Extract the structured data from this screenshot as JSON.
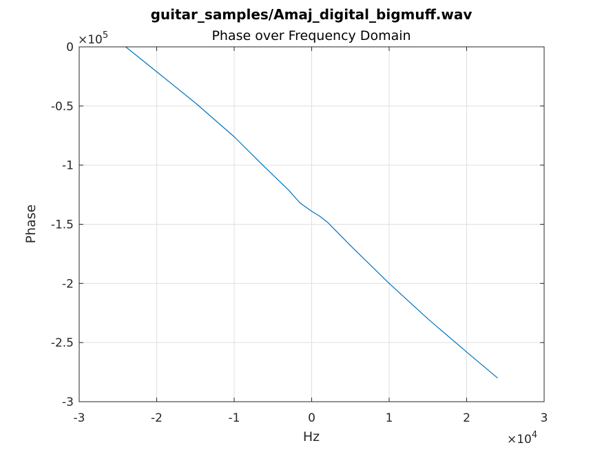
{
  "chart_data": {
    "type": "line",
    "title": "guitar_samples/Amaj_digital_bigmuff.wav",
    "subtitle": "Phase over Frequency Domain",
    "xlabel": "Hz",
    "ylabel": "Phase",
    "xlim": [
      -30000,
      30000
    ],
    "ylim": [
      -300000,
      0
    ],
    "xticks": [
      -30000,
      -20000,
      -10000,
      0,
      10000,
      20000,
      30000
    ],
    "xtick_labels": [
      "-3",
      "-2",
      "-1",
      "0",
      "1",
      "2",
      "3"
    ],
    "yticks": [
      0,
      -50000,
      -100000,
      -150000,
      -200000,
      -250000,
      -300000
    ],
    "ytick_labels": [
      "0",
      "-0.5",
      "-1",
      "-1.5",
      "-2",
      "-2.5",
      "-3"
    ],
    "x_exponent": {
      "base": "×10",
      "power": "4"
    },
    "y_exponent": {
      "base": "×10",
      "power": "5"
    },
    "grid": true,
    "line_color": "#0072bd",
    "series": [
      {
        "x": [
          -24000,
          -20000,
          -15000,
          -10000,
          -6000,
          -3000,
          -1500,
          0,
          1000,
          2000,
          5000,
          10000,
          15000,
          20000,
          24000
        ],
        "values": [
          0,
          -21000,
          -47500,
          -76000,
          -102000,
          -121000,
          -132000,
          -139000,
          -143000,
          -148000,
          -168000,
          -200000,
          -230000,
          -258000,
          -280000
        ]
      }
    ]
  }
}
